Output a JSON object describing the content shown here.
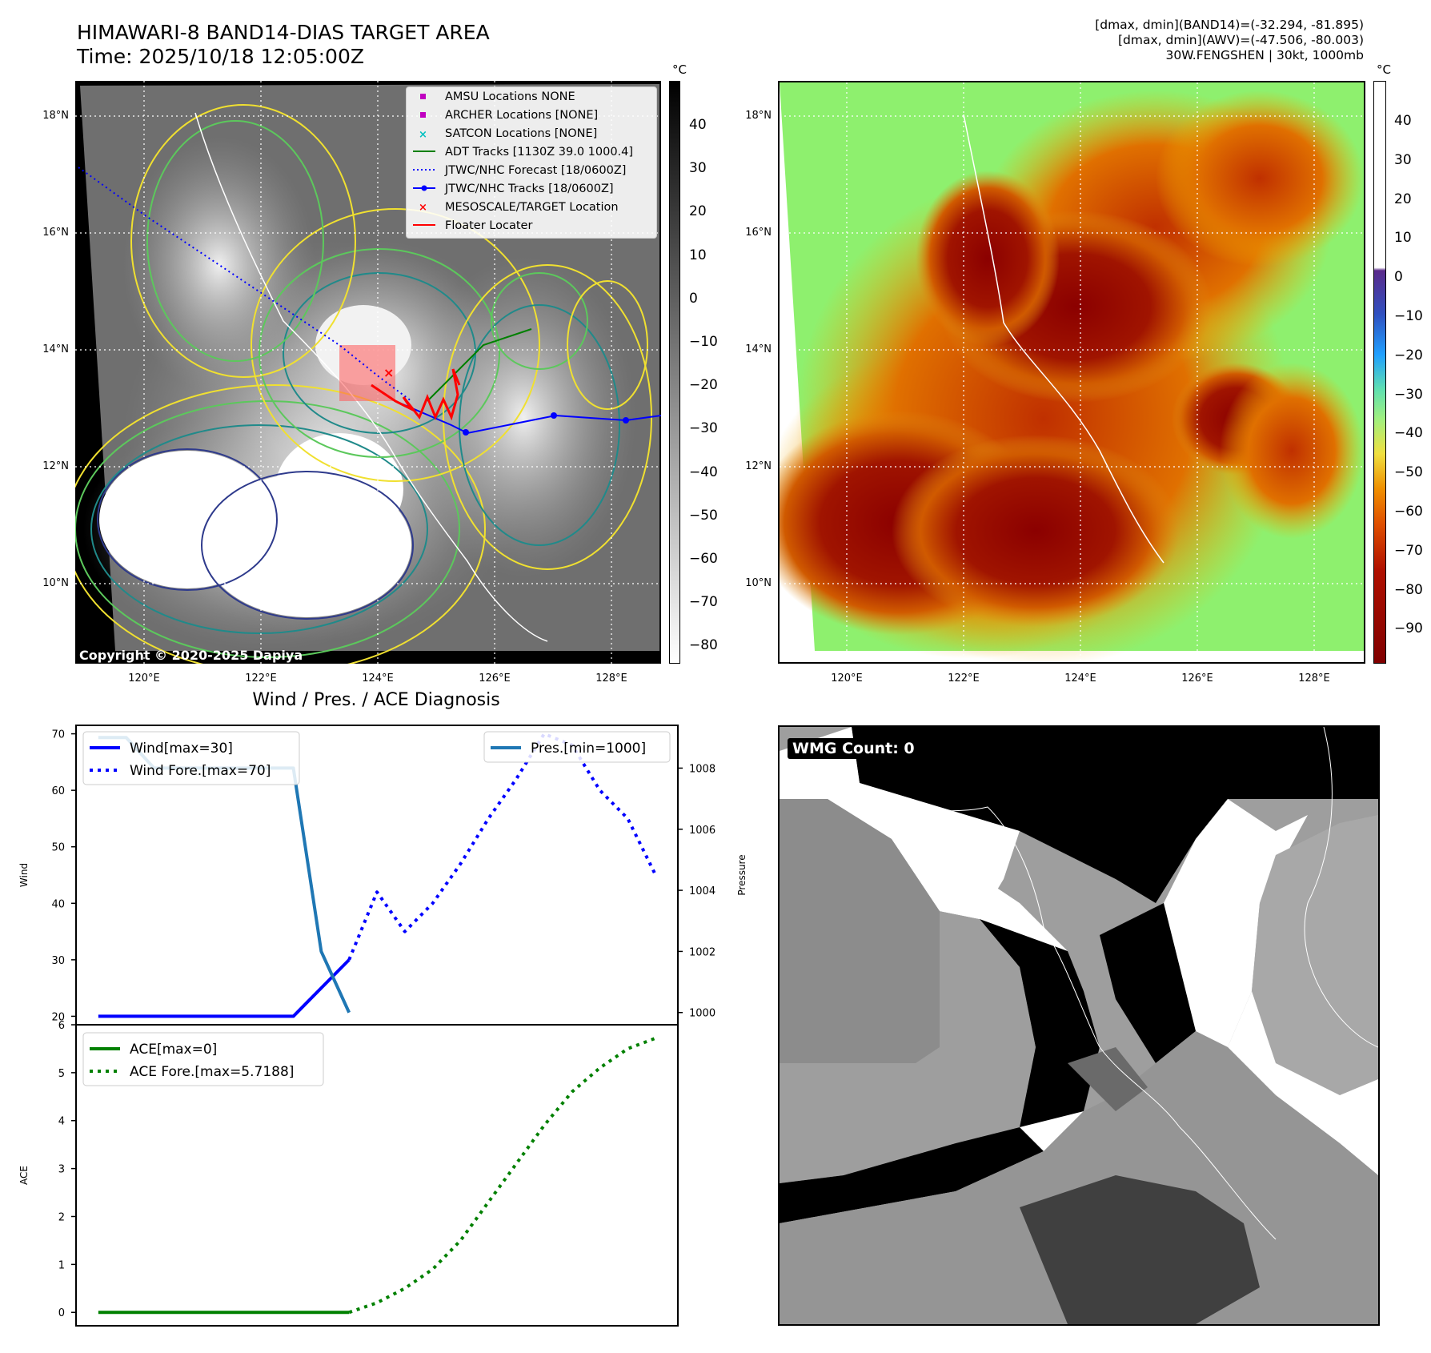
{
  "header": {
    "title": "HIMAWARI-8 BAND14-DIAS TARGET AREA",
    "time": "Time: 2025/10/18 12:05:00Z",
    "right_lines": [
      "[dmax, dmin](BAND14)=(-32.294, -81.895)",
      "[dmax, dmin](AWV)=(-47.506, -80.003)",
      "30W.FENGSHEN | 30kt, 1000mb"
    ]
  },
  "map_axes": {
    "lon_ticks": [
      "120°E",
      "122°E",
      "124°E",
      "126°E",
      "128°E"
    ],
    "lat_ticks": [
      "18°N",
      "16°N",
      "14°N",
      "12°N",
      "10°N"
    ]
  },
  "legend_ir": [
    {
      "label": "AMSU Locations NONE",
      "marker": "square",
      "color": "#c000c0"
    },
    {
      "label": "ARCHER Locations [NONE]",
      "marker": "square",
      "color": "#c000c0"
    },
    {
      "label": "SATCON Locations [NONE]",
      "marker": "x",
      "color": "#00bfbf"
    },
    {
      "label": "ADT Tracks [1130Z 39.0 1000.4]",
      "marker": "line",
      "color": "#008000"
    },
    {
      "label": "JTWC/NHC Forecast [18/0600Z]",
      "marker": "dotted",
      "color": "#0000ff"
    },
    {
      "label": "JTWC/NHC Tracks [18/0600Z]",
      "marker": "line-dot",
      "color": "#0000ff"
    },
    {
      "label": "MESOSCALE/TARGET Location",
      "marker": "x",
      "color": "#ff0000"
    },
    {
      "label": "Floater Locater",
      "marker": "line",
      "color": "#ff0000"
    }
  ],
  "copyright": "Copyright © 2020-2025 Dapiya",
  "colorbar_ir": {
    "unit": "°C",
    "ticks": [
      "40",
      "30",
      "20",
      "10",
      "0",
      "−10",
      "−20",
      "−30",
      "−40",
      "−50",
      "−60",
      "−70",
      "−80"
    ]
  },
  "colorbar_wv": {
    "unit": "°C",
    "ticks": [
      "40",
      "30",
      "20",
      "10",
      "0",
      "−10",
      "−20",
      "−30",
      "−40",
      "−50",
      "−60",
      "−70",
      "−80",
      "−90"
    ]
  },
  "wmg_label": "WMG Count: 0",
  "colors": {
    "wind": "#0000ff",
    "pres": "#1f77b4",
    "ace": "#008000"
  },
  "chart_data": [
    {
      "type": "line",
      "title": "Wind / Pres. / ACE Diagnosis",
      "ylabel": "Wind",
      "ylabel_right": "Pressure",
      "ylim": [
        18.5,
        71.5
      ],
      "ylim_right": [
        999.6,
        1009.4
      ],
      "yticks": [
        20,
        30,
        40,
        50,
        60,
        70
      ],
      "yticks_right": [
        1000,
        1002,
        1004,
        1006,
        1008
      ],
      "xlim": [
        -0.8,
        20.8
      ],
      "series": [
        {
          "name": "Wind[max=30]",
          "axis": "left",
          "style": "solid",
          "color": "#0000ff",
          "x": [
            0,
            1,
            2,
            3,
            4,
            5,
            6,
            7,
            8,
            9
          ],
          "y": [
            20,
            20,
            20,
            20,
            20,
            20,
            20,
            20,
            25,
            30
          ]
        },
        {
          "name": "Wind Fore.[max=70]",
          "axis": "left",
          "style": "dotted",
          "color": "#0000ff",
          "x": [
            9,
            10,
            11,
            12,
            13,
            14,
            15,
            16,
            17,
            18,
            19,
            20
          ],
          "y": [
            30,
            42,
            35,
            40,
            47,
            55,
            62,
            70,
            68,
            60,
            55,
            45
          ]
        },
        {
          "name": "Pres.[min=1000]",
          "axis": "right",
          "style": "solid",
          "color": "#1f77b4",
          "x": [
            0,
            1,
            2,
            3,
            4,
            5,
            6,
            7,
            8,
            9
          ],
          "y": [
            1009,
            1009,
            1008,
            1008,
            1008,
            1008,
            1008,
            1008,
            1002,
            1000
          ]
        }
      ]
    },
    {
      "type": "line",
      "ylabel": "ACE",
      "ylim": [
        -0.28,
        6.0
      ],
      "yticks": [
        0,
        1,
        2,
        3,
        4,
        5,
        6
      ],
      "xlim": [
        -0.8,
        20.8
      ],
      "series": [
        {
          "name": "ACE[max=0]",
          "style": "solid",
          "color": "#008000",
          "x": [
            0,
            9
          ],
          "y": [
            0,
            0
          ]
        },
        {
          "name": "ACE Fore.[max=5.7188]",
          "style": "dotted",
          "color": "#008000",
          "x": [
            9,
            10,
            11,
            12,
            13,
            14,
            15,
            16,
            17,
            18,
            19,
            20
          ],
          "y": [
            0,
            0.2,
            0.5,
            0.9,
            1.5,
            2.3,
            3.1,
            3.9,
            4.6,
            5.1,
            5.5,
            5.72
          ]
        }
      ]
    }
  ]
}
